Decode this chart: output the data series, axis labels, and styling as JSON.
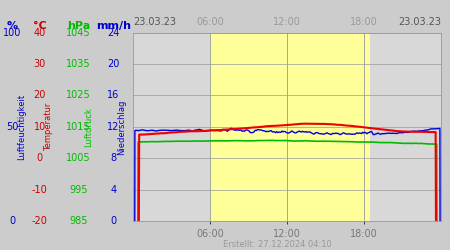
{
  "title_left": "23.03.23",
  "title_right": "23.03.23",
  "footer": "Erstellt: 27.12.2024 04:10",
  "x_ticks": [
    6,
    12,
    18
  ],
  "x_tick_labels": [
    "06:00",
    "12:00",
    "18:00"
  ],
  "x_range": [
    0,
    24
  ],
  "y_range": [
    985,
    1045
  ],
  "yellow_regions": [
    [
      6.0,
      18.5
    ]
  ],
  "left_yticks_hpa": [
    985,
    995,
    1005,
    1015,
    1025,
    1035,
    1045
  ],
  "grid_color": "#999999",
  "bg_color_plot": "#d8d8d8",
  "bg_color_yellow": "#ffff99",
  "line_colors": {
    "red": "#ee0000",
    "blue": "#0000dd",
    "green": "#00bb00"
  },
  "pct_color": "#0000cc",
  "temp_color": "#cc0000",
  "hpa_color": "#00bb00",
  "mmh_color": "#0000cc",
  "label_fontsize": 7,
  "unit_fontsize": 8,
  "rotated_label_fontsize": 6,
  "tick_label_fontsize": 7,
  "date_fontsize": 7,
  "footer_fontsize": 6
}
